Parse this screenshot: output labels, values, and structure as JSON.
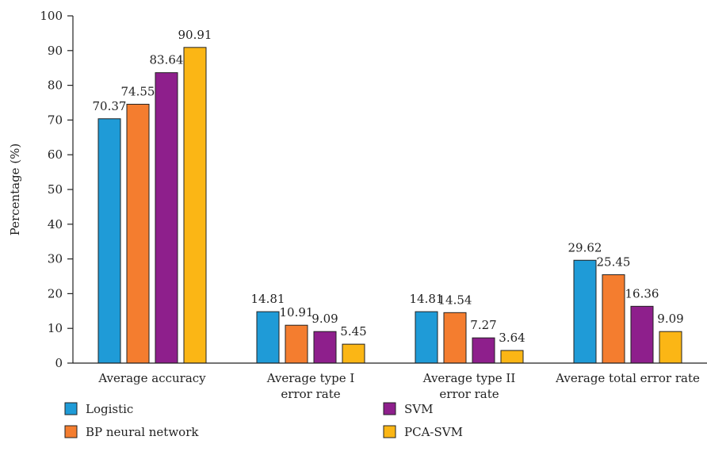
{
  "chart_data": {
    "type": "bar",
    "categories": [
      [
        "Average accuracy"
      ],
      [
        "Average type I",
        "error rate"
      ],
      [
        "Average type II",
        "error rate"
      ],
      [
        "Average total error rate"
      ]
    ],
    "series": [
      {
        "name": "Logistic",
        "color": "#1f9bd7",
        "values": [
          70.37,
          14.81,
          14.81,
          29.62
        ],
        "labels": [
          "70.37",
          "14.81",
          "14.81",
          "29.62"
        ]
      },
      {
        "name": "BP neural network",
        "color": "#f47d2f",
        "values": [
          74.55,
          10.91,
          14.54,
          25.45
        ],
        "labels": [
          "74.55",
          "10.91",
          "14.54",
          "25.45"
        ]
      },
      {
        "name": "SVM",
        "color": "#8e1f8c",
        "values": [
          83.64,
          9.09,
          7.27,
          16.36
        ],
        "labels": [
          "83.64",
          "9.09",
          "7.27",
          "16.36"
        ]
      },
      {
        "name": "PCA-SVM",
        "color": "#fbb615",
        "values": [
          90.91,
          5.45,
          3.64,
          9.09
        ],
        "labels": [
          "90.91",
          "5.45",
          "3.64",
          "9.09"
        ]
      }
    ],
    "ylabel": "Percentage (%)",
    "xlabel": "",
    "title": "",
    "ylim": [
      0,
      100
    ],
    "yticks": [
      0,
      10,
      20,
      30,
      40,
      50,
      60,
      70,
      80,
      90,
      100
    ],
    "grid": false,
    "legend_position": "bottom"
  }
}
